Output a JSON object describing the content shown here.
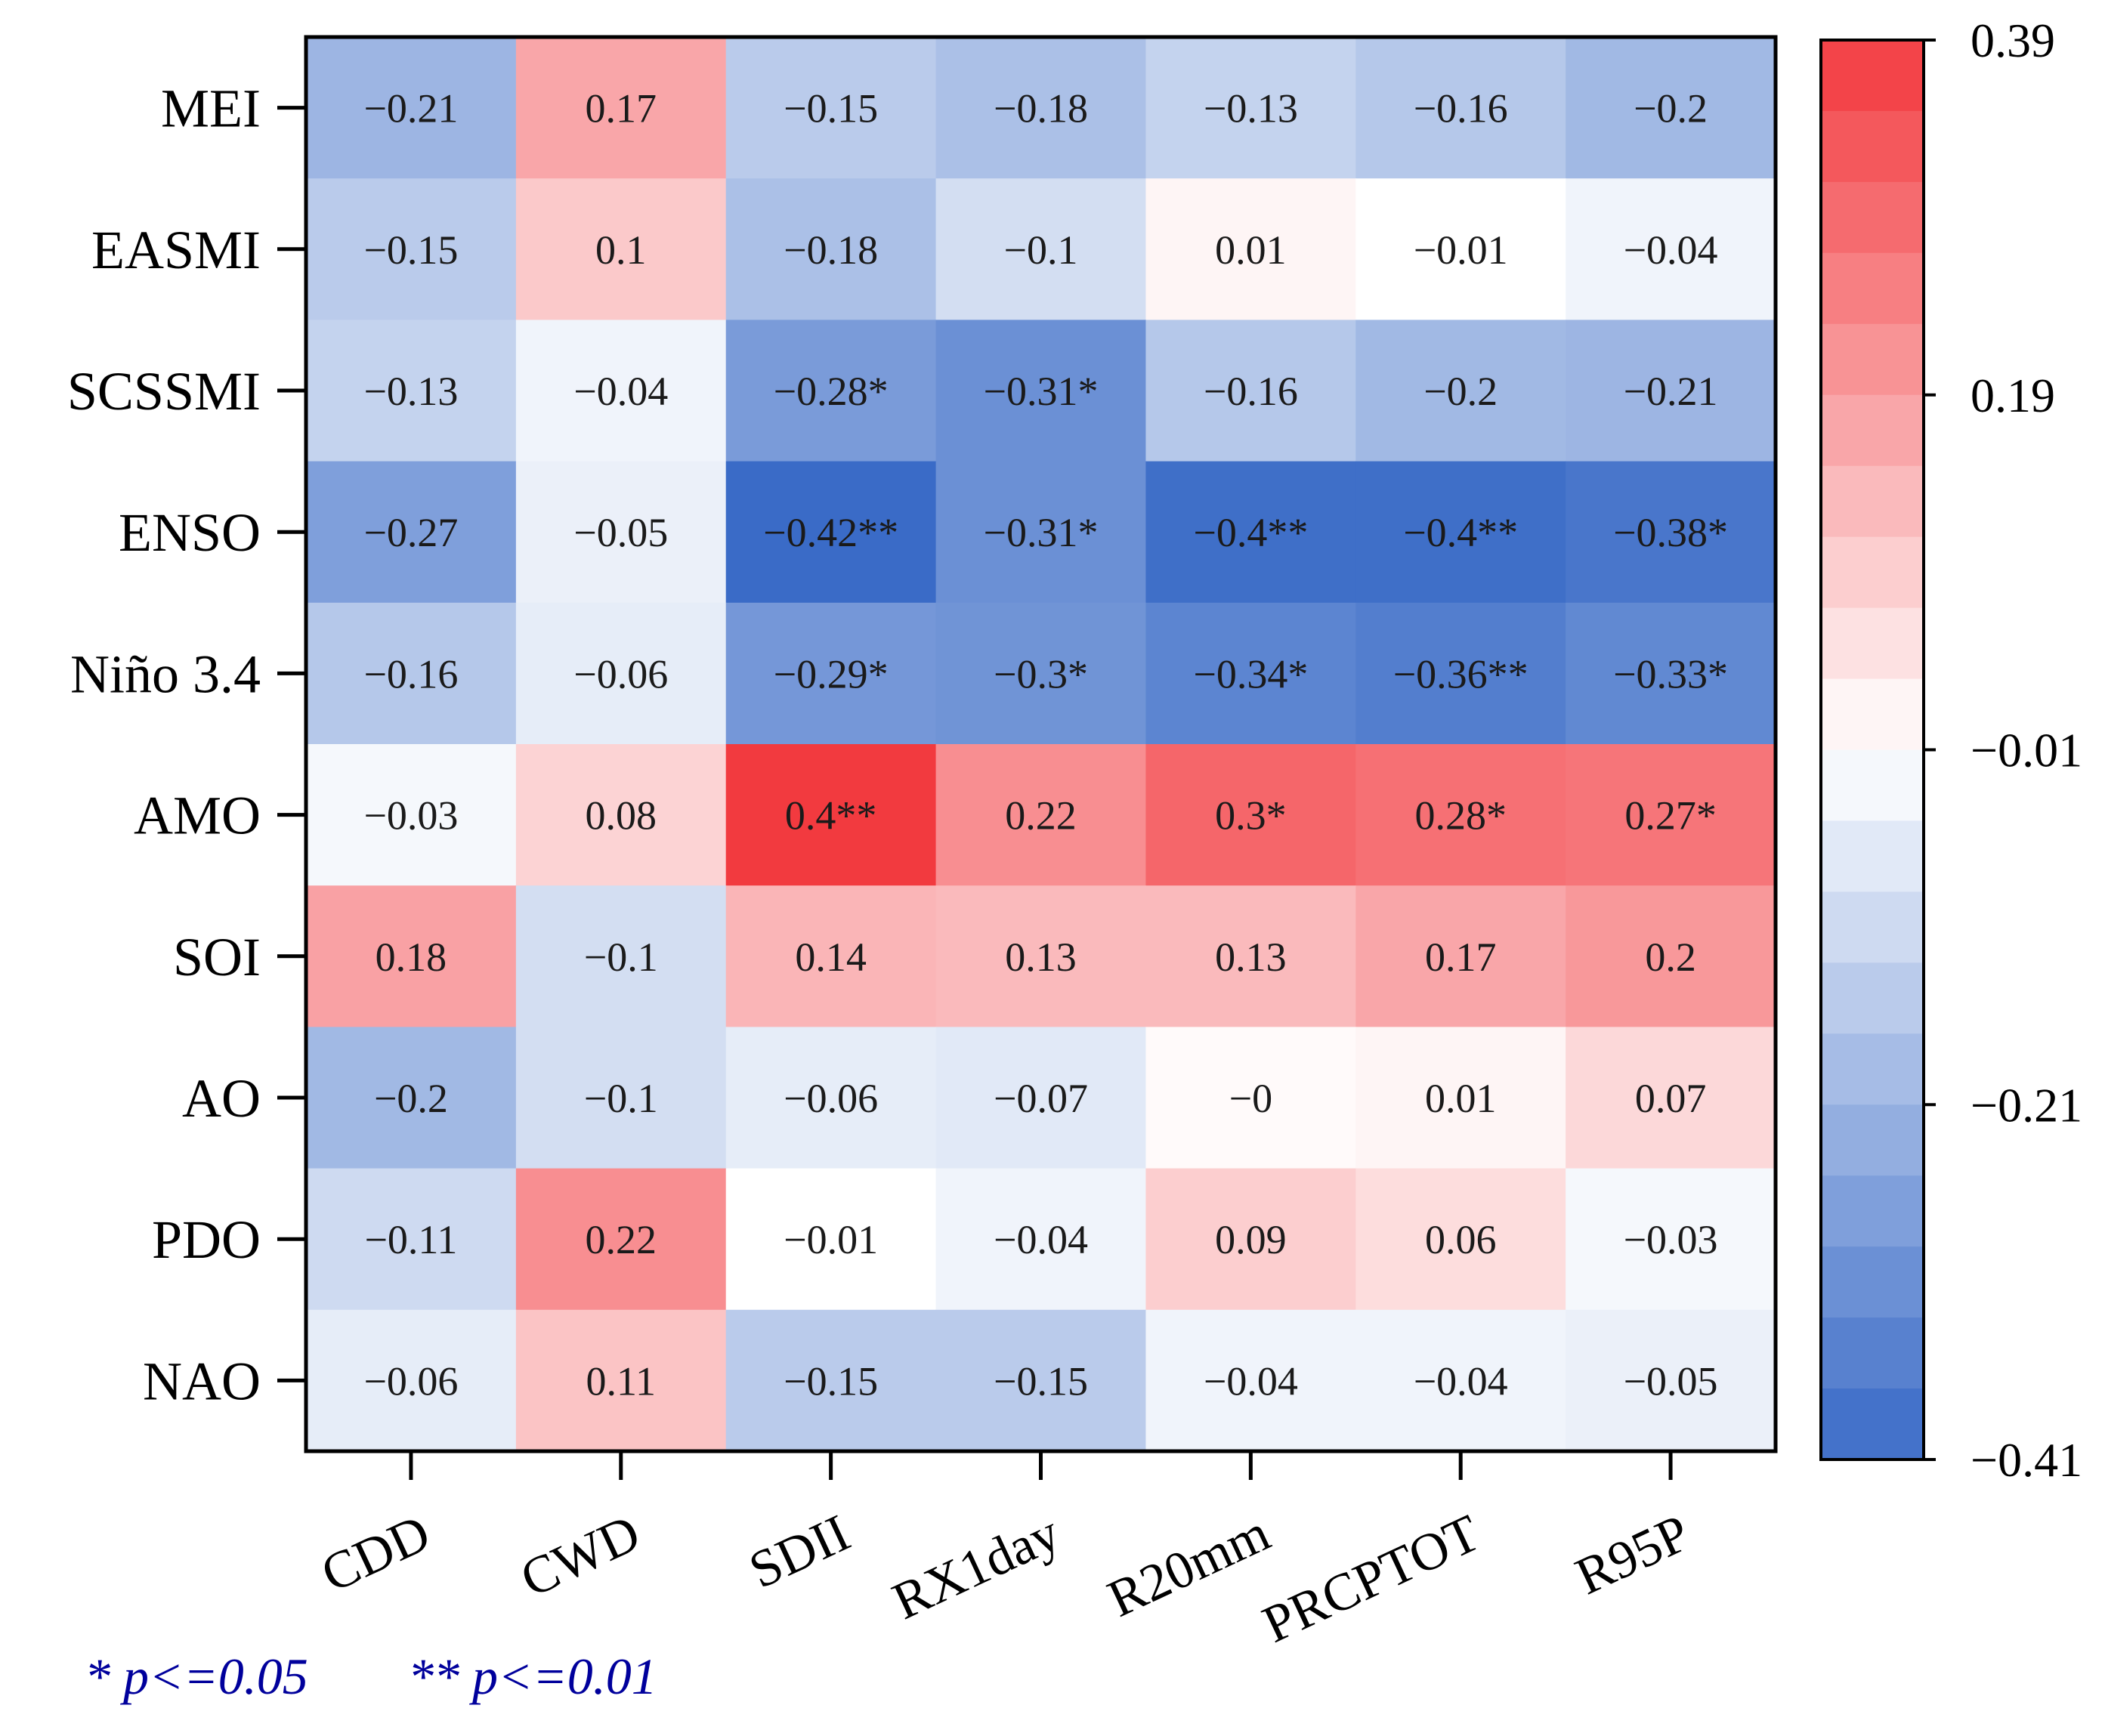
{
  "chart_data": {
    "type": "heatmap",
    "title": "",
    "xlabel": "",
    "ylabel": "",
    "columns": [
      "CDD",
      "CWD",
      "SDII",
      "RX1day",
      "R20mm",
      "PRCPTOT",
      "R95P"
    ],
    "rows": [
      "MEI",
      "EASMI",
      "SCSSMI",
      "ENSO",
      "Niño 3.4",
      "AMO",
      "SOI",
      "AO",
      "PDO",
      "NAO"
    ],
    "values": [
      [
        -0.21,
        0.17,
        -0.15,
        -0.18,
        -0.13,
        -0.16,
        -0.2
      ],
      [
        -0.15,
        0.1,
        -0.18,
        -0.1,
        0.01,
        -0.01,
        -0.04
      ],
      [
        -0.13,
        -0.04,
        -0.28,
        -0.31,
        -0.16,
        -0.2,
        -0.21
      ],
      [
        -0.27,
        -0.05,
        -0.42,
        -0.31,
        -0.4,
        -0.4,
        -0.38
      ],
      [
        -0.16,
        -0.06,
        -0.29,
        -0.3,
        -0.34,
        -0.36,
        -0.33
      ],
      [
        -0.03,
        0.08,
        0.4,
        0.22,
        0.3,
        0.28,
        0.27
      ],
      [
        0.18,
        -0.1,
        0.14,
        0.13,
        0.13,
        0.17,
        0.2
      ],
      [
        -0.2,
        -0.1,
        -0.06,
        -0.07,
        -0.0,
        0.01,
        0.07
      ],
      [
        -0.11,
        0.22,
        -0.01,
        -0.04,
        0.09,
        0.06,
        -0.03
      ],
      [
        -0.06,
        0.11,
        -0.15,
        -0.15,
        -0.04,
        -0.04,
        -0.05
      ]
    ],
    "cell_labels": [
      [
        "−0.21",
        "0.17",
        "−0.15",
        "−0.18",
        "−0.13",
        "−0.16",
        "−0.2"
      ],
      [
        "−0.15",
        "0.1",
        "−0.18",
        "−0.1",
        "0.01",
        "−0.01",
        "−0.04"
      ],
      [
        "−0.13",
        "−0.04",
        "−0.28*",
        "−0.31*",
        "−0.16",
        "−0.2",
        "−0.21"
      ],
      [
        "−0.27",
        "−0.05",
        "−0.42**",
        "−0.31*",
        "−0.4**",
        "−0.4**",
        "−0.38*"
      ],
      [
        "−0.16",
        "−0.06",
        "−0.29*",
        "−0.3*",
        "−0.34*",
        "−0.36**",
        "−0.33*"
      ],
      [
        "−0.03",
        "0.08",
        "0.4**",
        "0.22",
        "0.3*",
        "0.28*",
        "0.27*"
      ],
      [
        "0.18",
        "−0.1",
        "0.14",
        "0.13",
        "0.13",
        "0.17",
        "0.2"
      ],
      [
        "−0.2",
        "−0.1",
        "−0.06",
        "−0.07",
        "−0",
        "0.01",
        "0.07"
      ],
      [
        "−0.11",
        "0.22",
        "−0.01",
        "−0.04",
        "0.09",
        "0.06",
        "−0.03"
      ],
      [
        "−0.06",
        "0.11",
        "−0.15",
        "−0.15",
        "−0.04",
        "−0.04",
        "−0.05"
      ]
    ],
    "colorbar": {
      "min": -0.41,
      "max": 0.39,
      "levels": 20,
      "tick_labels": [
        "0.39",
        "0.19",
        "−0.01",
        "−0.21",
        "−0.41"
      ],
      "tick_values": [
        0.39,
        0.19,
        -0.01,
        -0.21,
        -0.41
      ],
      "colors": {
        "neg_end": "#3a6bc7",
        "mid": "#ffffff",
        "pos_end": "#f23a3f"
      }
    },
    "significance_note": {
      "single": "* p<=0.05",
      "double": "** p<=0.01",
      "color": "#00009c"
    }
  }
}
